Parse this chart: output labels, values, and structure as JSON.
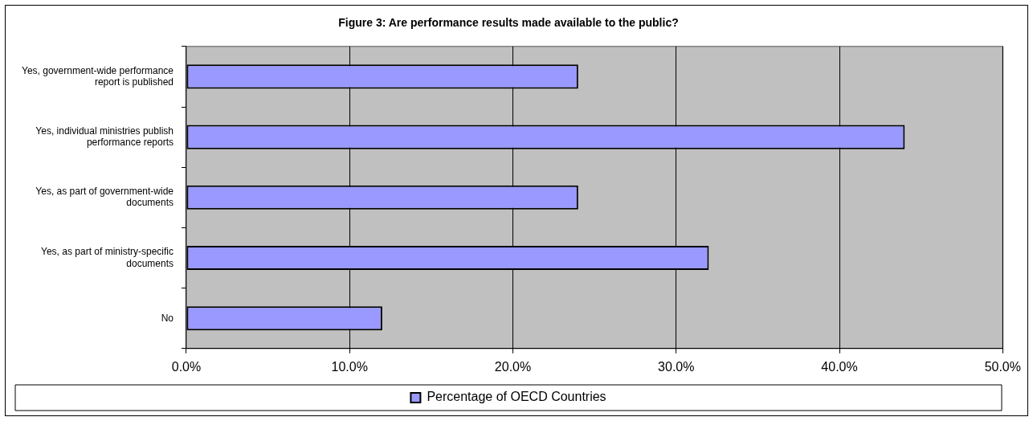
{
  "chart_data": {
    "type": "bar",
    "orientation": "horizontal",
    "title": "Figure 3: Are performance results made available to the public?",
    "categories": [
      "Yes, government-wide performance report is published",
      "Yes, individual ministries publish performance reports",
      "Yes, as part of government-wide documents",
      "Yes, as part of ministry-specific documents",
      "No"
    ],
    "series": [
      {
        "name": "Percentage of OECD Countries",
        "color": "#9999ff",
        "values": [
          24,
          44,
          24,
          32,
          12
        ]
      }
    ],
    "xlim": [
      0,
      50
    ],
    "xticks": [
      {
        "value": 0,
        "label": "0.0%"
      },
      {
        "value": 10,
        "label": "10.0%"
      },
      {
        "value": 20,
        "label": "20.0%"
      },
      {
        "value": 30,
        "label": "30.0%"
      },
      {
        "value": 40,
        "label": "40.0%"
      },
      {
        "value": 50,
        "label": "50.0%"
      }
    ],
    "grid": "x",
    "legend": "bottom"
  }
}
